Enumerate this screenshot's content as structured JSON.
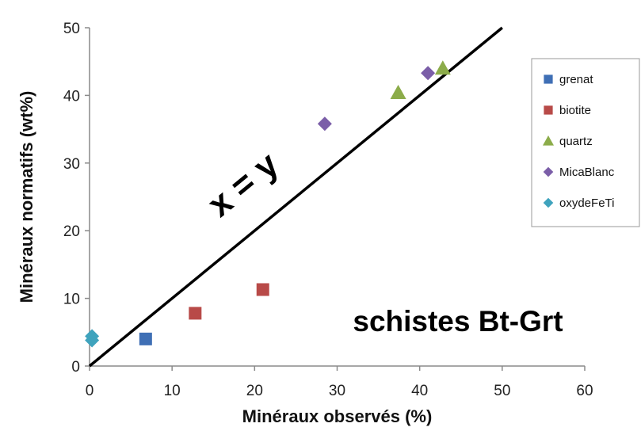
{
  "chart_data": {
    "type": "scatter",
    "xlabel": "Minéraux observés (%)",
    "ylabel": "Minéraux normatifs (wt%)",
    "xlim": [
      0,
      60
    ],
    "ylim": [
      0,
      50
    ],
    "xticks": [
      0,
      10,
      20,
      30,
      40,
      50,
      60
    ],
    "yticks": [
      0,
      10,
      20,
      30,
      40,
      50
    ],
    "grid": false,
    "legend_position": "right",
    "series": [
      {
        "name": "grenat",
        "marker": "square",
        "color": "#3f6fb5",
        "points": [
          [
            6.8,
            4.0
          ]
        ]
      },
      {
        "name": "biotite",
        "marker": "square",
        "color": "#b84a48",
        "points": [
          [
            12.8,
            7.8
          ],
          [
            21.0,
            11.3
          ]
        ]
      },
      {
        "name": "quartz",
        "marker": "triangle",
        "color": "#8cac4a",
        "points": [
          [
            37.4,
            40.4
          ],
          [
            42.8,
            44.0
          ]
        ]
      },
      {
        "name": "MicaBlanc",
        "marker": "diamond",
        "color": "#7b5ea8",
        "points": [
          [
            28.5,
            35.8
          ],
          [
            41.0,
            43.3
          ]
        ]
      },
      {
        "name": "oxydeFeTi",
        "marker": "diamond",
        "color": "#3fa3bd",
        "points": [
          [
            0.3,
            4.4
          ],
          [
            0.3,
            3.8
          ]
        ]
      }
    ],
    "reference_line": {
      "label": "x = y",
      "from": [
        0,
        0
      ],
      "to": [
        50,
        50
      ]
    },
    "annotation": "schistes Bt-Grt"
  }
}
